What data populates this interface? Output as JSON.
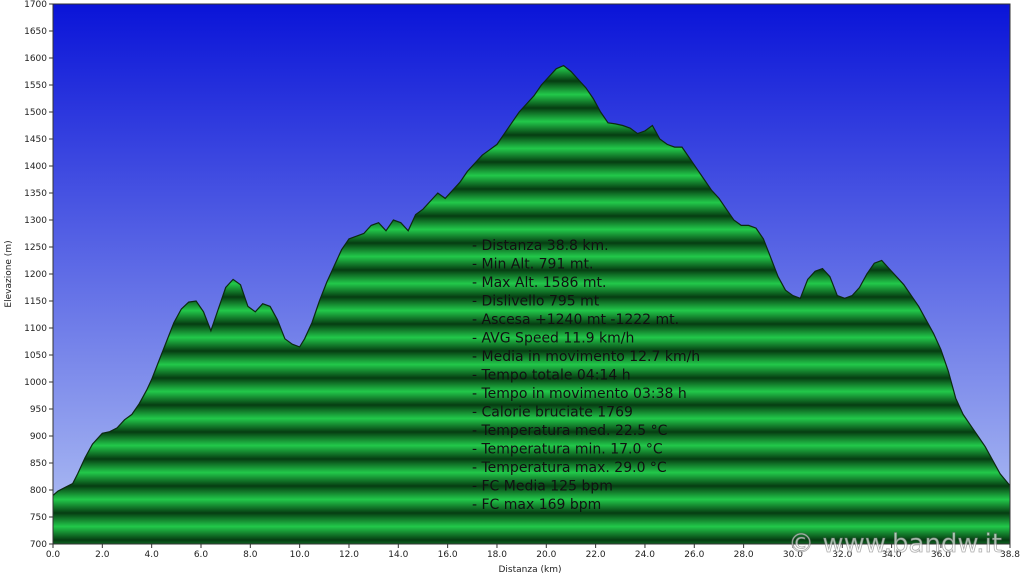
{
  "chart_data": {
    "type": "area",
    "xlabel": "Distanza  (km)",
    "ylabel": "Elevazione (m)",
    "xlim": [
      0,
      38.8
    ],
    "ylim": [
      700,
      1700
    ],
    "x_ticks": [
      "0.0",
      "2.0",
      "4.0",
      "6.0",
      "8.0",
      "10.0",
      "12.0",
      "14.0",
      "16.0",
      "18.0",
      "20.0",
      "22.0",
      "24.0",
      "26.0",
      "28.0",
      "30.0",
      "32.0",
      "34.0",
      "36.0",
      "38.8"
    ],
    "y_ticks": [
      "700",
      "750",
      "800",
      "850",
      "900",
      "950",
      "1000",
      "1050",
      "1100",
      "1150",
      "1200",
      "1250",
      "1300",
      "1350",
      "1400",
      "1450",
      "1500",
      "1550",
      "1600",
      "1650",
      "1700"
    ],
    "grid": false,
    "colors": {
      "sky_top": "#0a14d8",
      "sky_bottom": "#b4c4f4",
      "fill_light": "#22c94a",
      "fill_dark": "#063d12",
      "outline": "#0c2a10"
    },
    "x": [
      0,
      0.2,
      0.5,
      0.8,
      1.0,
      1.3,
      1.6,
      2.0,
      2.3,
      2.6,
      2.9,
      3.2,
      3.5,
      3.8,
      4.0,
      4.3,
      4.6,
      4.9,
      5.2,
      5.5,
      5.8,
      6.1,
      6.4,
      6.7,
      7.0,
      7.3,
      7.6,
      7.9,
      8.2,
      8.5,
      8.8,
      9.1,
      9.4,
      9.7,
      10.0,
      10.2,
      10.5,
      10.8,
      11.1,
      11.4,
      11.7,
      12.0,
      12.3,
      12.6,
      12.9,
      13.2,
      13.5,
      13.8,
      14.1,
      14.4,
      14.7,
      15.0,
      15.3,
      15.6,
      15.9,
      16.2,
      16.5,
      16.8,
      17.1,
      17.4,
      17.7,
      18.0,
      18.3,
      18.6,
      18.9,
      19.2,
      19.5,
      19.8,
      20.1,
      20.4,
      20.7,
      21.0,
      21.3,
      21.6,
      21.9,
      22.2,
      22.5,
      22.8,
      23.1,
      23.4,
      23.7,
      24.0,
      24.3,
      24.6,
      24.9,
      25.2,
      25.5,
      25.8,
      26.1,
      26.4,
      26.7,
      27.0,
      27.3,
      27.6,
      27.9,
      28.2,
      28.5,
      28.8,
      29.1,
      29.4,
      29.7,
      30.0,
      30.3,
      30.6,
      30.9,
      31.2,
      31.5,
      31.8,
      32.1,
      32.4,
      32.7,
      33.0,
      33.3,
      33.6,
      33.9,
      34.2,
      34.5,
      34.8,
      35.1,
      35.4,
      35.7,
      36.0,
      36.3,
      36.6,
      36.9,
      37.2,
      37.5,
      37.8,
      38.1,
      38.4,
      38.8
    ],
    "y": [
      790,
      798,
      805,
      812,
      830,
      860,
      885,
      905,
      908,
      915,
      930,
      940,
      960,
      985,
      1005,
      1040,
      1075,
      1110,
      1135,
      1148,
      1150,
      1130,
      1095,
      1135,
      1175,
      1190,
      1180,
      1140,
      1130,
      1145,
      1140,
      1115,
      1080,
      1070,
      1065,
      1080,
      1110,
      1150,
      1185,
      1215,
      1245,
      1265,
      1270,
      1275,
      1290,
      1295,
      1280,
      1300,
      1295,
      1280,
      1310,
      1320,
      1335,
      1350,
      1340,
      1355,
      1370,
      1390,
      1405,
      1420,
      1430,
      1440,
      1460,
      1480,
      1500,
      1515,
      1530,
      1550,
      1565,
      1580,
      1586,
      1575,
      1560,
      1545,
      1525,
      1500,
      1480,
      1478,
      1475,
      1470,
      1460,
      1465,
      1475,
      1450,
      1440,
      1435,
      1435,
      1415,
      1395,
      1375,
      1355,
      1340,
      1320,
      1300,
      1290,
      1290,
      1285,
      1265,
      1230,
      1195,
      1170,
      1160,
      1155,
      1190,
      1205,
      1210,
      1195,
      1160,
      1155,
      1160,
      1175,
      1200,
      1220,
      1225,
      1210,
      1195,
      1180,
      1160,
      1140,
      1115,
      1090,
      1060,
      1020,
      970,
      940,
      920,
      900,
      880,
      855,
      830,
      808
    ]
  },
  "stats": [
    "- Distanza 38.8 km.",
    "- Min Alt. 791 mt.",
    "- Max Alt. 1586 mt.",
    "- Dislivello 795 mt",
    "- Ascesa +1240 mt -1222 mt.",
    "- AVG Speed 11.9 km/h",
    "- Media in movimento 12.7 km/h",
    "- Tempo totale 04:14 h",
    "- Tempo in movimento 03:38 h",
    "- Calorie bruciate 1769",
    "- Temperatura med. 22.5 °C",
    "- Temperatura min. 17.0 °C",
    "- Temperatura max. 29.0 °C",
    "- FC Media 125 bpm",
    "- FC max 169 bpm"
  ],
  "watermark": "© www.bandw.it"
}
